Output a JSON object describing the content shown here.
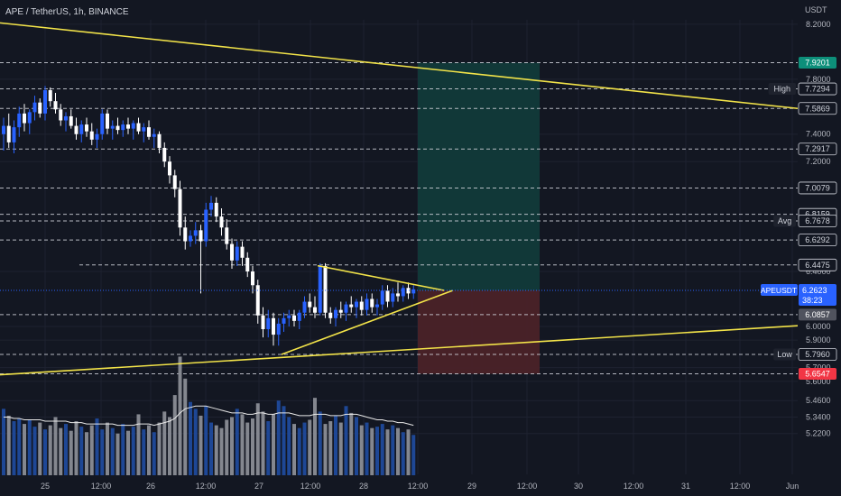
{
  "header": {
    "symbol": "APE / TetherUS, 1h, BINANCE",
    "currency": "USDT"
  },
  "colors": {
    "background": "#131722",
    "grid": "#1e2230",
    "axis_text": "#b2b5be",
    "up": "#2962ff",
    "down": "#ffffff",
    "trendline": "#f2e349",
    "target_zone": "#113a3a",
    "stop_zone": "#4a2228",
    "price_tag": "#2962ff",
    "stop_tag": "#f23645"
  },
  "chart_data": {
    "type": "candlestick",
    "title": "APE / TetherUS, 1h, BINANCE",
    "y_axis": {
      "unit": "USDT",
      "ticks": [
        "8.2000",
        "7.8000",
        "7.4000",
        "7.2000",
        "6.4000",
        "6.0000",
        "5.9000",
        "5.7000",
        "5.6000",
        "5.4600",
        "5.3400",
        "5.2200"
      ]
    },
    "x_axis": {
      "ticks": [
        "25",
        "12:00",
        "26",
        "12:00",
        "27",
        "12:00",
        "28",
        "12:00",
        "29",
        "12:00",
        "30",
        "12:00",
        "31",
        "12:00",
        "Jun"
      ]
    },
    "horizontal_levels": [
      {
        "value": 7.9201,
        "label": "7.9201",
        "tag": "green"
      },
      {
        "value": 7.7294,
        "label": "7.7294",
        "caption": "High"
      },
      {
        "value": 7.5869,
        "label": "7.5869"
      },
      {
        "value": 7.2917,
        "label": "7.2917"
      },
      {
        "value": 7.0079,
        "label": "7.0079"
      },
      {
        "value": 6.8159,
        "label": "6.8159"
      },
      {
        "value": 6.7678,
        "label": "6.7678",
        "caption": "Avg"
      },
      {
        "value": 6.6292,
        "label": "6.6292"
      },
      {
        "value": 6.4475,
        "label": "6.4475"
      },
      {
        "value": 6.0857,
        "label": "6.0857",
        "tag": "gray"
      },
      {
        "value": 5.796,
        "label": "5.7960",
        "caption": "Low"
      },
      {
        "value": 5.6547,
        "label": "5.6547",
        "tag": "red"
      }
    ],
    "last_price": {
      "caption": "APEUSDT",
      "value": "6.2623",
      "countdown": "38:23"
    },
    "position": {
      "entry": 6.2623,
      "target": 7.9201,
      "stop": 5.6547
    },
    "candles": [
      [
        7.4,
        7.52,
        7.28,
        7.46
      ],
      [
        7.46,
        7.55,
        7.3,
        7.34
      ],
      [
        7.34,
        7.5,
        7.26,
        7.45
      ],
      [
        7.45,
        7.6,
        7.38,
        7.55
      ],
      [
        7.55,
        7.62,
        7.42,
        7.48
      ],
      [
        7.48,
        7.58,
        7.4,
        7.56
      ],
      [
        7.56,
        7.68,
        7.5,
        7.63
      ],
      [
        7.63,
        7.66,
        7.52,
        7.55
      ],
      [
        7.55,
        7.75,
        7.5,
        7.72
      ],
      [
        7.72,
        7.74,
        7.6,
        7.64
      ],
      [
        7.64,
        7.7,
        7.55,
        7.58
      ],
      [
        7.58,
        7.62,
        7.46,
        7.5
      ],
      [
        7.5,
        7.56,
        7.42,
        7.53
      ],
      [
        7.53,
        7.58,
        7.44,
        7.46
      ],
      [
        7.46,
        7.52,
        7.36,
        7.4
      ],
      [
        7.4,
        7.5,
        7.34,
        7.47
      ],
      [
        7.47,
        7.52,
        7.38,
        7.42
      ],
      [
        7.42,
        7.48,
        7.32,
        7.36
      ],
      [
        7.36,
        7.44,
        7.3,
        7.4
      ],
      [
        7.4,
        7.58,
        7.36,
        7.55
      ],
      [
        7.55,
        7.58,
        7.4,
        7.44
      ],
      [
        7.44,
        7.5,
        7.36,
        7.46
      ],
      [
        7.46,
        7.52,
        7.4,
        7.43
      ],
      [
        7.43,
        7.5,
        7.38,
        7.47
      ],
      [
        7.47,
        7.52,
        7.4,
        7.44
      ],
      [
        7.44,
        7.5,
        7.36,
        7.48
      ],
      [
        7.48,
        7.52,
        7.4,
        7.42
      ],
      [
        7.42,
        7.48,
        7.34,
        7.45
      ],
      [
        7.45,
        7.5,
        7.36,
        7.38
      ],
      [
        7.38,
        7.44,
        7.3,
        7.4
      ],
      [
        7.4,
        7.42,
        7.26,
        7.3
      ],
      [
        7.3,
        7.34,
        7.16,
        7.2
      ],
      [
        7.2,
        7.24,
        7.04,
        7.1
      ],
      [
        7.1,
        7.14,
        6.94,
        7.0
      ],
      [
        7.0,
        7.06,
        6.66,
        6.72
      ],
      [
        6.72,
        6.8,
        6.56,
        6.62
      ],
      [
        6.62,
        6.7,
        6.58,
        6.66
      ],
      [
        6.66,
        6.76,
        6.6,
        6.7
      ],
      [
        6.7,
        6.74,
        6.24,
        6.62
      ],
      [
        6.62,
        6.9,
        6.58,
        6.85
      ],
      [
        6.85,
        6.95,
        6.8,
        6.9
      ],
      [
        6.9,
        6.94,
        6.76,
        6.8
      ],
      [
        6.8,
        6.86,
        6.66,
        6.72
      ],
      [
        6.72,
        6.78,
        6.56,
        6.6
      ],
      [
        6.6,
        6.64,
        6.42,
        6.48
      ],
      [
        6.48,
        6.62,
        6.44,
        6.58
      ],
      [
        6.58,
        6.62,
        6.44,
        6.5
      ],
      [
        6.5,
        6.54,
        6.36,
        6.4
      ],
      [
        6.4,
        6.44,
        6.24,
        6.3
      ],
      [
        6.3,
        6.34,
        6.02,
        6.08
      ],
      [
        6.08,
        6.14,
        5.92,
        5.98
      ],
      [
        5.98,
        6.12,
        5.92,
        6.06
      ],
      [
        6.06,
        6.1,
        5.86,
        5.94
      ],
      [
        5.94,
        6.06,
        5.86,
        6.02
      ],
      [
        6.02,
        6.1,
        5.96,
        6.06
      ],
      [
        6.06,
        6.12,
        6.0,
        6.08
      ],
      [
        6.08,
        6.12,
        6.0,
        6.04
      ],
      [
        6.04,
        6.12,
        5.98,
        6.1
      ],
      [
        6.1,
        6.22,
        6.06,
        6.18
      ],
      [
        6.18,
        6.24,
        6.1,
        6.14
      ],
      [
        6.14,
        6.22,
        6.06,
        6.1
      ],
      [
        6.1,
        6.46,
        6.08,
        6.44
      ],
      [
        6.44,
        6.46,
        6.06,
        6.1
      ],
      [
        6.1,
        6.14,
        6.02,
        6.06
      ],
      [
        6.06,
        6.14,
        6.0,
        6.12
      ],
      [
        6.12,
        6.18,
        6.06,
        6.1
      ],
      [
        6.1,
        6.18,
        6.04,
        6.16
      ],
      [
        6.16,
        6.22,
        6.1,
        6.14
      ],
      [
        6.14,
        6.2,
        6.06,
        6.18
      ],
      [
        6.18,
        6.22,
        6.08,
        6.12
      ],
      [
        6.12,
        6.24,
        6.08,
        6.2
      ],
      [
        6.2,
        6.24,
        6.1,
        6.14
      ],
      [
        6.14,
        6.2,
        6.08,
        6.16
      ],
      [
        6.16,
        6.3,
        6.12,
        6.26
      ],
      [
        6.26,
        6.3,
        6.14,
        6.18
      ],
      [
        6.18,
        6.28,
        6.14,
        6.24
      ],
      [
        6.24,
        6.32,
        6.18,
        6.22
      ],
      [
        6.22,
        6.3,
        6.18,
        6.28
      ],
      [
        6.28,
        6.32,
        6.2,
        6.24
      ],
      [
        6.24,
        6.3,
        6.2,
        6.27
      ]
    ],
    "volumes": [
      5.4,
      5.35,
      5.31,
      5.33,
      5.29,
      5.32,
      5.27,
      5.3,
      5.25,
      5.28,
      5.34,
      5.26,
      5.29,
      5.24,
      5.31,
      5.27,
      5.23,
      5.28,
      5.33,
      5.25,
      5.3,
      5.26,
      5.22,
      5.29,
      5.24,
      5.27,
      5.36,
      5.25,
      5.28,
      5.23,
      5.3,
      5.38,
      5.34,
      5.5,
      5.78,
      5.62,
      5.45,
      5.4,
      5.35,
      5.42,
      5.3,
      5.28,
      5.26,
      5.32,
      5.34,
      5.4,
      5.36,
      5.3,
      5.33,
      5.44,
      5.38,
      5.31,
      5.36,
      5.46,
      5.42,
      5.34,
      5.29,
      5.26,
      5.3,
      5.32,
      5.48,
      5.38,
      5.29,
      5.31,
      5.35,
      5.3,
      5.42,
      5.37,
      5.34,
      5.28,
      5.3,
      5.26,
      5.27,
      5.29,
      5.25,
      5.28,
      5.26,
      5.23,
      5.25,
      5.21
    ],
    "volume_ma": [
      5.34,
      5.34,
      5.33,
      5.33,
      5.32,
      5.32,
      5.32,
      5.32,
      5.31,
      5.31,
      5.31,
      5.31,
      5.31,
      5.3,
      5.3,
      5.3,
      5.29,
      5.29,
      5.29,
      5.29,
      5.29,
      5.29,
      5.28,
      5.28,
      5.28,
      5.28,
      5.29,
      5.29,
      5.29,
      5.28,
      5.29,
      5.3,
      5.31,
      5.33,
      5.37,
      5.4,
      5.41,
      5.42,
      5.42,
      5.42,
      5.41,
      5.4,
      5.39,
      5.38,
      5.37,
      5.37,
      5.37,
      5.36,
      5.36,
      5.37,
      5.37,
      5.36,
      5.36,
      5.37,
      5.37,
      5.37,
      5.36,
      5.35,
      5.35,
      5.35,
      5.36,
      5.36,
      5.36,
      5.35,
      5.35,
      5.35,
      5.36,
      5.36,
      5.36,
      5.35,
      5.34,
      5.33,
      5.32,
      5.32,
      5.31,
      5.31,
      5.3,
      5.3,
      5.29,
      5.28
    ]
  }
}
